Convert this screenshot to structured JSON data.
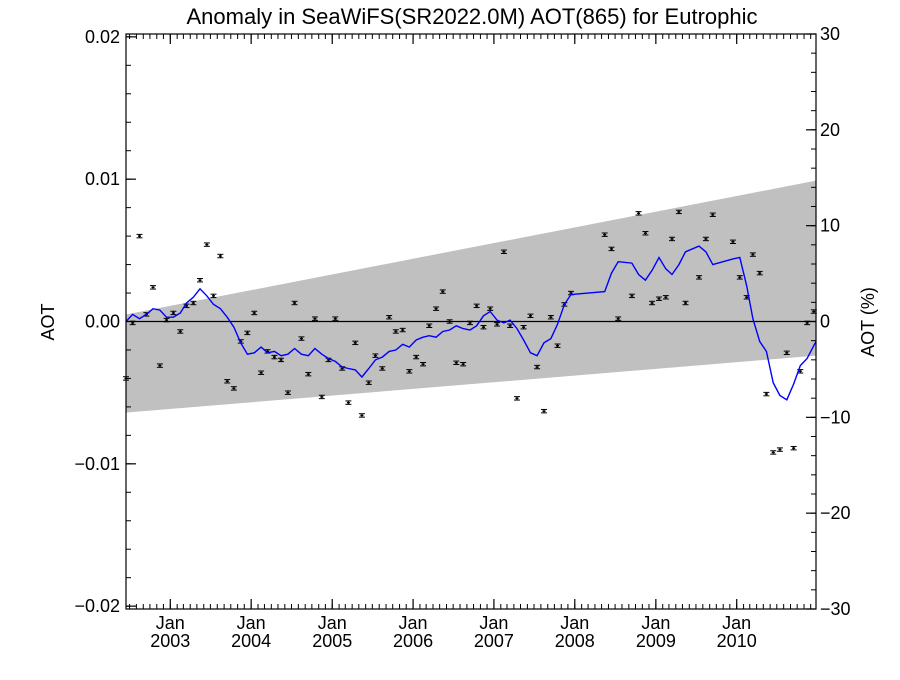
{
  "chart_data": {
    "type": "scatter",
    "title": "Anomaly in SeaWiFS(SR2022.0M) AOT(865) for Eutrophic",
    "ylabel": "AOT",
    "ylabel_right": "AOT (%)",
    "xlabel": "",
    "x_range": [
      "2002-06-15",
      "2010-12-25"
    ],
    "ylim": [
      -0.0202,
      0.0202
    ],
    "ylim_right": [
      -30,
      30
    ],
    "x_ticks": [
      {
        "date": "2003-01-01",
        "label_top": "Jan",
        "label_bottom": "2003"
      },
      {
        "date": "2004-01-01",
        "label_top": "Jan",
        "label_bottom": "2004"
      },
      {
        "date": "2005-01-01",
        "label_top": "Jan",
        "label_bottom": "2005"
      },
      {
        "date": "2006-01-01",
        "label_top": "Jan",
        "label_bottom": "2006"
      },
      {
        "date": "2007-01-01",
        "label_top": "Jan",
        "label_bottom": "2007"
      },
      {
        "date": "2008-01-01",
        "label_top": "Jan",
        "label_bottom": "2008"
      },
      {
        "date": "2009-01-01",
        "label_top": "Jan",
        "label_bottom": "2009"
      },
      {
        "date": "2010-01-01",
        "label_top": "Jan",
        "label_bottom": "2010"
      }
    ],
    "y_ticks_left": [
      "0.02",
      "0.01",
      "0.00",
      "−0.01",
      "−0.02"
    ],
    "y_tick_values_left": [
      0.02,
      0.01,
      0.0,
      -0.01,
      -0.02
    ],
    "y_ticks_right": [
      "30",
      "20",
      "10",
      "0",
      "−10",
      "−20",
      "−30"
    ],
    "y_tick_values_right": [
      30,
      20,
      10,
      0,
      -10,
      -20,
      -30
    ],
    "band": {
      "color": "#c0c0c0",
      "upper": [
        [
          "2002-06-15",
          0.0005
        ],
        [
          "2010-12-25",
          0.0099
        ]
      ],
      "lower": [
        [
          "2002-06-15",
          -0.0064
        ],
        [
          "2010-12-25",
          -0.0024
        ]
      ]
    },
    "zero_line": 0.0,
    "points": [
      {
        "x": "2002-06-15",
        "y": -0.004
      },
      {
        "x": "2002-07-15",
        "y": -0.0001
      },
      {
        "x": "2002-08-15",
        "y": 0.006
      },
      {
        "x": "2002-09-15",
        "y": 0.0005
      },
      {
        "x": "2002-10-15",
        "y": 0.0024
      },
      {
        "x": "2002-11-15",
        "y": -0.0031
      },
      {
        "x": "2002-12-15",
        "y": 0.0001
      },
      {
        "x": "2003-01-15",
        "y": 0.0006
      },
      {
        "x": "2003-02-15",
        "y": -0.0007
      },
      {
        "x": "2003-03-15",
        "y": 0.0011
      },
      {
        "x": "2003-04-15",
        "y": 0.0013
      },
      {
        "x": "2003-05-15",
        "y": 0.0029
      },
      {
        "x": "2003-06-15",
        "y": 0.0054
      },
      {
        "x": "2003-07-15",
        "y": 0.0018
      },
      {
        "x": "2003-08-15",
        "y": 0.0046
      },
      {
        "x": "2003-09-15",
        "y": -0.0042
      },
      {
        "x": "2003-10-15",
        "y": -0.0047
      },
      {
        "x": "2003-11-15",
        "y": -0.0014
      },
      {
        "x": "2003-12-15",
        "y": -0.0008
      },
      {
        "x": "2004-01-15",
        "y": 0.0006
      },
      {
        "x": "2004-02-15",
        "y": -0.0036
      },
      {
        "x": "2004-03-15",
        "y": -0.0021
      },
      {
        "x": "2004-04-15",
        "y": -0.0025
      },
      {
        "x": "2004-05-15",
        "y": -0.0027
      },
      {
        "x": "2004-06-15",
        "y": -0.005
      },
      {
        "x": "2004-07-15",
        "y": 0.0013
      },
      {
        "x": "2004-08-15",
        "y": -0.0012
      },
      {
        "x": "2004-09-15",
        "y": -0.0037
      },
      {
        "x": "2004-10-15",
        "y": 0.0002
      },
      {
        "x": "2004-11-15",
        "y": -0.0053
      },
      {
        "x": "2004-12-15",
        "y": -0.0027
      },
      {
        "x": "2005-01-15",
        "y": 0.0002
      },
      {
        "x": "2005-02-15",
        "y": -0.0033
      },
      {
        "x": "2005-03-15",
        "y": -0.0057
      },
      {
        "x": "2005-04-15",
        "y": -0.0015
      },
      {
        "x": "2005-05-15",
        "y": -0.0066
      },
      {
        "x": "2005-06-15",
        "y": -0.0043
      },
      {
        "x": "2005-07-15",
        "y": -0.0024
      },
      {
        "x": "2005-08-15",
        "y": -0.0033
      },
      {
        "x": "2005-09-15",
        "y": 0.0003
      },
      {
        "x": "2005-10-15",
        "y": -0.0007
      },
      {
        "x": "2005-11-15",
        "y": -0.0006
      },
      {
        "x": "2005-12-15",
        "y": -0.0035
      },
      {
        "x": "2006-01-15",
        "y": -0.0025
      },
      {
        "x": "2006-02-15",
        "y": -0.003
      },
      {
        "x": "2006-03-15",
        "y": -0.0003
      },
      {
        "x": "2006-04-15",
        "y": 0.0009
      },
      {
        "x": "2006-05-15",
        "y": 0.0021
      },
      {
        "x": "2006-06-15",
        "y": 0.0
      },
      {
        "x": "2006-07-15",
        "y": -0.0029
      },
      {
        "x": "2006-08-15",
        "y": -0.003
      },
      {
        "x": "2006-09-15",
        "y": -0.0001
      },
      {
        "x": "2006-10-15",
        "y": 0.0011
      },
      {
        "x": "2006-11-15",
        "y": -0.0004
      },
      {
        "x": "2006-12-15",
        "y": 0.0009
      },
      {
        "x": "2007-01-15",
        "y": -0.0002
      },
      {
        "x": "2007-02-15",
        "y": 0.0049
      },
      {
        "x": "2007-03-15",
        "y": -0.0003
      },
      {
        "x": "2007-04-15",
        "y": -0.0054
      },
      {
        "x": "2007-05-15",
        "y": -0.0004
      },
      {
        "x": "2007-06-15",
        "y": 0.0004
      },
      {
        "x": "2007-07-15",
        "y": -0.0032
      },
      {
        "x": "2007-08-15",
        "y": -0.0063
      },
      {
        "x": "2007-09-15",
        "y": 0.0003
      },
      {
        "x": "2007-10-15",
        "y": -0.0017
      },
      {
        "x": "2007-11-15",
        "y": 0.0012
      },
      {
        "x": "2007-12-15",
        "y": 0.002
      },
      {
        "x": "2008-05-15",
        "y": 0.0061
      },
      {
        "x": "2008-06-15",
        "y": 0.0051
      },
      {
        "x": "2008-07-15",
        "y": 0.0002
      },
      {
        "x": "2008-09-15",
        "y": 0.0018
      },
      {
        "x": "2008-10-15",
        "y": 0.0076
      },
      {
        "x": "2008-11-15",
        "y": 0.0062
      },
      {
        "x": "2008-12-15",
        "y": 0.0013
      },
      {
        "x": "2009-01-15",
        "y": 0.0016
      },
      {
        "x": "2009-02-15",
        "y": 0.0017
      },
      {
        "x": "2009-03-15",
        "y": 0.0058
      },
      {
        "x": "2009-04-15",
        "y": 0.0077
      },
      {
        "x": "2009-05-15",
        "y": 0.0013
      },
      {
        "x": "2009-07-15",
        "y": 0.0031
      },
      {
        "x": "2009-08-15",
        "y": 0.0058
      },
      {
        "x": "2009-09-15",
        "y": 0.0075
      },
      {
        "x": "2009-12-15",
        "y": 0.0056
      },
      {
        "x": "2010-01-15",
        "y": 0.0031
      },
      {
        "x": "2010-02-15",
        "y": 0.0017
      },
      {
        "x": "2010-03-15",
        "y": 0.0047
      },
      {
        "x": "2010-04-15",
        "y": 0.0034
      },
      {
        "x": "2010-05-15",
        "y": -0.0051
      },
      {
        "x": "2010-06-15",
        "y": -0.0092
      },
      {
        "x": "2010-07-15",
        "y": -0.009
      },
      {
        "x": "2010-08-15",
        "y": -0.0022
      },
      {
        "x": "2010-09-15",
        "y": -0.0089
      },
      {
        "x": "2010-10-15",
        "y": -0.0035
      },
      {
        "x": "2010-11-15",
        "y": -0.0001
      },
      {
        "x": "2010-12-15",
        "y": 0.0007
      }
    ],
    "error_bar": 0.00012,
    "smooth_line": {
      "color": "#0000ff",
      "points": [
        {
          "x": "2002-06-15",
          "y": 0.0
        },
        {
          "x": "2002-07-15",
          "y": 0.0005
        },
        {
          "x": "2002-08-15",
          "y": 0.0002
        },
        {
          "x": "2002-09-15",
          "y": 0.0005
        },
        {
          "x": "2002-10-15",
          "y": 0.0009
        },
        {
          "x": "2002-11-15",
          "y": 0.0008
        },
        {
          "x": "2002-12-15",
          "y": 0.0003
        },
        {
          "x": "2003-01-15",
          "y": 0.0003
        },
        {
          "x": "2003-02-15",
          "y": 0.0006
        },
        {
          "x": "2003-03-15",
          "y": 0.0013
        },
        {
          "x": "2003-04-15",
          "y": 0.0017
        },
        {
          "x": "2003-05-15",
          "y": 0.0023
        },
        {
          "x": "2003-06-15",
          "y": 0.0018
        },
        {
          "x": "2003-07-15",
          "y": 0.0012
        },
        {
          "x": "2003-08-15",
          "y": 0.0009
        },
        {
          "x": "2003-09-15",
          "y": 0.0003
        },
        {
          "x": "2003-10-15",
          "y": -0.0004
        },
        {
          "x": "2003-11-15",
          "y": -0.0015
        },
        {
          "x": "2003-12-15",
          "y": -0.0023
        },
        {
          "x": "2004-01-15",
          "y": -0.0022
        },
        {
          "x": "2004-02-15",
          "y": -0.0018
        },
        {
          "x": "2004-03-15",
          "y": -0.0022
        },
        {
          "x": "2004-04-15",
          "y": -0.0021
        },
        {
          "x": "2004-05-15",
          "y": -0.0024
        },
        {
          "x": "2004-06-15",
          "y": -0.0023
        },
        {
          "x": "2004-07-15",
          "y": -0.0019
        },
        {
          "x": "2004-08-15",
          "y": -0.0023
        },
        {
          "x": "2004-09-15",
          "y": -0.0024
        },
        {
          "x": "2004-10-15",
          "y": -0.0019
        },
        {
          "x": "2004-11-15",
          "y": -0.0023
        },
        {
          "x": "2004-12-15",
          "y": -0.0026
        },
        {
          "x": "2005-01-15",
          "y": -0.0028
        },
        {
          "x": "2005-02-15",
          "y": -0.0032
        },
        {
          "x": "2005-03-15",
          "y": -0.0033
        },
        {
          "x": "2005-04-15",
          "y": -0.0034
        },
        {
          "x": "2005-05-15",
          "y": -0.0039
        },
        {
          "x": "2005-06-15",
          "y": -0.0033
        },
        {
          "x": "2005-07-15",
          "y": -0.0027
        },
        {
          "x": "2005-08-15",
          "y": -0.0025
        },
        {
          "x": "2005-09-15",
          "y": -0.0021
        },
        {
          "x": "2005-10-15",
          "y": -0.002
        },
        {
          "x": "2005-11-15",
          "y": -0.0016
        },
        {
          "x": "2005-12-15",
          "y": -0.0018
        },
        {
          "x": "2006-01-15",
          "y": -0.0013
        },
        {
          "x": "2006-02-15",
          "y": -0.0011
        },
        {
          "x": "2006-03-15",
          "y": -0.001
        },
        {
          "x": "2006-04-15",
          "y": -0.0011
        },
        {
          "x": "2006-05-15",
          "y": -0.0007
        },
        {
          "x": "2006-06-15",
          "y": -0.0006
        },
        {
          "x": "2006-07-15",
          "y": -0.0003
        },
        {
          "x": "2006-08-15",
          "y": -0.0005
        },
        {
          "x": "2006-09-15",
          "y": -0.0006
        },
        {
          "x": "2006-10-15",
          "y": -0.0003
        },
        {
          "x": "2006-11-15",
          "y": 0.0004
        },
        {
          "x": "2006-12-15",
          "y": 0.0007
        },
        {
          "x": "2007-01-15",
          "y": 0.0001
        },
        {
          "x": "2007-02-15",
          "y": -0.0001
        },
        {
          "x": "2007-03-15",
          "y": 0.0001
        },
        {
          "x": "2007-04-15",
          "y": -0.0005
        },
        {
          "x": "2007-05-15",
          "y": -0.0013
        },
        {
          "x": "2007-06-15",
          "y": -0.0022
        },
        {
          "x": "2007-07-15",
          "y": -0.0024
        },
        {
          "x": "2007-08-15",
          "y": -0.0015
        },
        {
          "x": "2007-09-15",
          "y": -0.0012
        },
        {
          "x": "2007-10-15",
          "y": -0.0002
        },
        {
          "x": "2007-11-15",
          "y": 0.0012
        },
        {
          "x": "2007-12-15",
          "y": 0.0019
        },
        {
          "x": "2008-05-15",
          "y": 0.0021
        },
        {
          "x": "2008-06-15",
          "y": 0.0034
        },
        {
          "x": "2008-07-15",
          "y": 0.0042
        },
        {
          "x": "2008-09-15",
          "y": 0.0041
        },
        {
          "x": "2008-10-15",
          "y": 0.0033
        },
        {
          "x": "2008-11-15",
          "y": 0.0029
        },
        {
          "x": "2008-12-15",
          "y": 0.0036
        },
        {
          "x": "2009-01-15",
          "y": 0.0045
        },
        {
          "x": "2009-02-15",
          "y": 0.0037
        },
        {
          "x": "2009-03-15",
          "y": 0.0033
        },
        {
          "x": "2009-04-15",
          "y": 0.004
        },
        {
          "x": "2009-05-15",
          "y": 0.0049
        },
        {
          "x": "2009-07-15",
          "y": 0.0053
        },
        {
          "x": "2009-08-15",
          "y": 0.0049
        },
        {
          "x": "2009-09-15",
          "y": 0.004
        },
        {
          "x": "2009-12-15",
          "y": 0.0044
        },
        {
          "x": "2010-01-15",
          "y": 0.0045
        },
        {
          "x": "2010-02-15",
          "y": 0.0025
        },
        {
          "x": "2010-03-15",
          "y": 0.0002
        },
        {
          "x": "2010-04-15",
          "y": -0.0014
        },
        {
          "x": "2010-05-15",
          "y": -0.0021
        },
        {
          "x": "2010-06-15",
          "y": -0.0043
        },
        {
          "x": "2010-07-15",
          "y": -0.0052
        },
        {
          "x": "2010-08-15",
          "y": -0.0055
        },
        {
          "x": "2010-09-15",
          "y": -0.0044
        },
        {
          "x": "2010-10-15",
          "y": -0.0031
        },
        {
          "x": "2010-11-15",
          "y": -0.0026
        },
        {
          "x": "2010-12-25",
          "y": -0.0014
        }
      ]
    }
  }
}
